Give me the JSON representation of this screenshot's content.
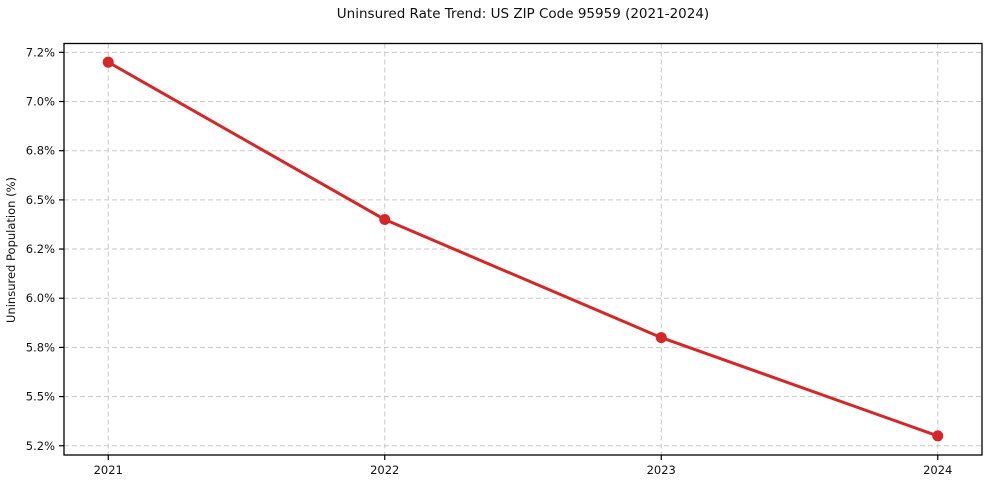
{
  "chart_data": {
    "type": "line",
    "title": "Uninsured Rate Trend: US ZIP Code 95959 (2021-2024)",
    "ylabel": "Uninsured Population (%)",
    "x": [
      2021,
      2022,
      2023,
      2024
    ],
    "series": [
      {
        "name": "Uninsured rate",
        "values": [
          7.2,
          6.4,
          5.8,
          5.3
        ]
      }
    ],
    "xticks": [
      2021,
      2022,
      2023,
      2024
    ],
    "xtick_labels": [
      "2021",
      "2022",
      "2023",
      "2024"
    ],
    "yticks": [
      5.25,
      5.5,
      5.75,
      6.0,
      6.25,
      6.5,
      6.75,
      7.0,
      7.25
    ],
    "ytick_labels": [
      "5.2%",
      "5.5%",
      "5.8%",
      "6.0%",
      "6.2%",
      "6.5%",
      "6.8%",
      "7.0%",
      "7.2%"
    ],
    "xlim": [
      2020.84,
      2024.16
    ],
    "ylim": [
      5.203,
      7.295
    ],
    "grid": true,
    "legend": false,
    "line_color": "#d62728",
    "marker": "circle",
    "background_color": "#ffffff"
  }
}
